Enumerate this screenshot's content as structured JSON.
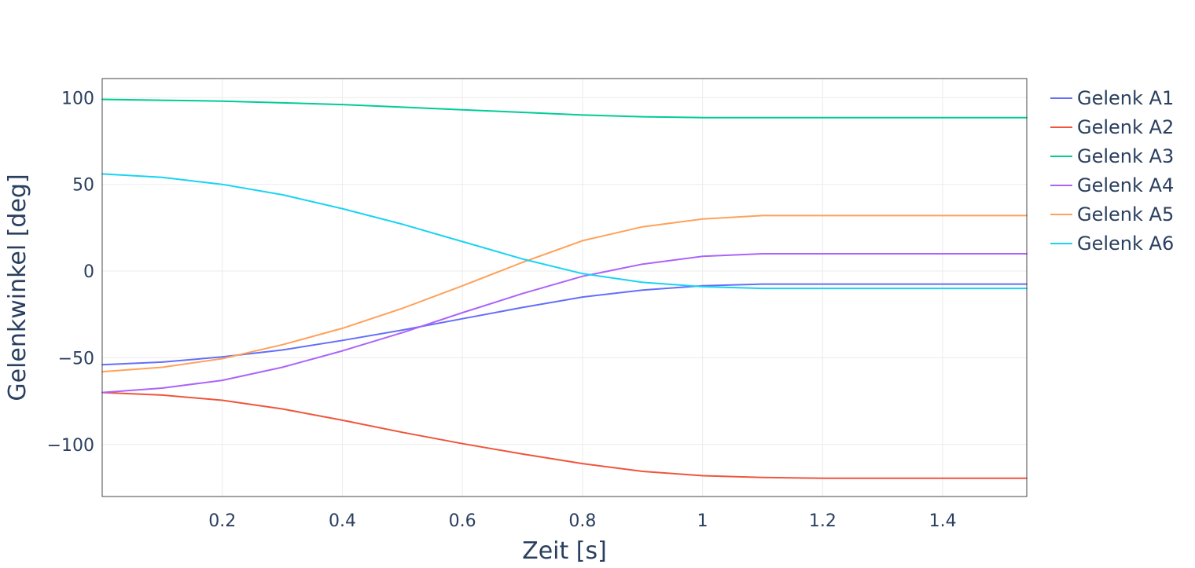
{
  "chart_data": {
    "type": "line",
    "title": "",
    "xlabel": "Zeit [s]",
    "ylabel": "Gelenkwinkel [deg]",
    "xlim": [
      0,
      1.54
    ],
    "ylim": [
      -130,
      111
    ],
    "x_ticks": [
      0.2,
      0.4,
      0.6,
      0.8,
      1,
      1.2,
      1.4
    ],
    "x_tick_labels": [
      "0.2",
      "0.4",
      "0.6",
      "0.8",
      "1",
      "1.2",
      "1.4"
    ],
    "y_ticks": [
      100,
      50,
      0,
      -50,
      -100
    ],
    "y_tick_labels": [
      "100",
      "50",
      "0",
      "−50",
      "−100"
    ],
    "grid": true,
    "legend_position": "right",
    "x": [
      0,
      0.1,
      0.2,
      0.3,
      0.4,
      0.5,
      0.6,
      0.7,
      0.8,
      0.9,
      1.0,
      1.1,
      1.2,
      1.3,
      1.4,
      1.54
    ],
    "series": [
      {
        "name": "Gelenk A1",
        "color": "#636efa",
        "values": [
          -54,
          -52.5,
          -49.5,
          -45.5,
          -40,
          -34,
          -27.5,
          -21,
          -15,
          -11,
          -8.5,
          -7.5,
          -7.5,
          -7.5,
          -7.5,
          -7.5
        ]
      },
      {
        "name": "Gelenk A2",
        "color": "#ef553b",
        "values": [
          -70,
          -71.5,
          -74.5,
          -79.5,
          -86,
          -93,
          -99.5,
          -105.5,
          -111,
          -115.5,
          -118,
          -119,
          -119.5,
          -119.5,
          -119.5,
          -119.5
        ]
      },
      {
        "name": "Gelenk A3",
        "color": "#00cc96",
        "values": [
          99,
          98.5,
          98,
          97,
          96,
          94.5,
          93,
          91.5,
          90,
          89,
          88.5,
          88.5,
          88.5,
          88.5,
          88.5,
          88.5
        ]
      },
      {
        "name": "Gelenk A4",
        "color": "#ab63fa",
        "values": [
          -70,
          -67.5,
          -63,
          -55.5,
          -46,
          -35.5,
          -24,
          -13,
          -3,
          4,
          8.5,
          10,
          10,
          10,
          10,
          10
        ]
      },
      {
        "name": "Gelenk A5",
        "color": "#ffa15a",
        "values": [
          -58,
          -55.5,
          -50.5,
          -42.5,
          -33,
          -21.5,
          -8.5,
          5,
          17.5,
          25.5,
          30,
          32,
          32,
          32,
          32,
          32
        ]
      },
      {
        "name": "Gelenk A6",
        "color": "#19d3f3",
        "values": [
          56,
          54,
          50,
          44,
          36,
          27,
          17,
          7,
          -1.5,
          -6.5,
          -9,
          -10,
          -10,
          -10,
          -10,
          -10
        ]
      }
    ]
  }
}
